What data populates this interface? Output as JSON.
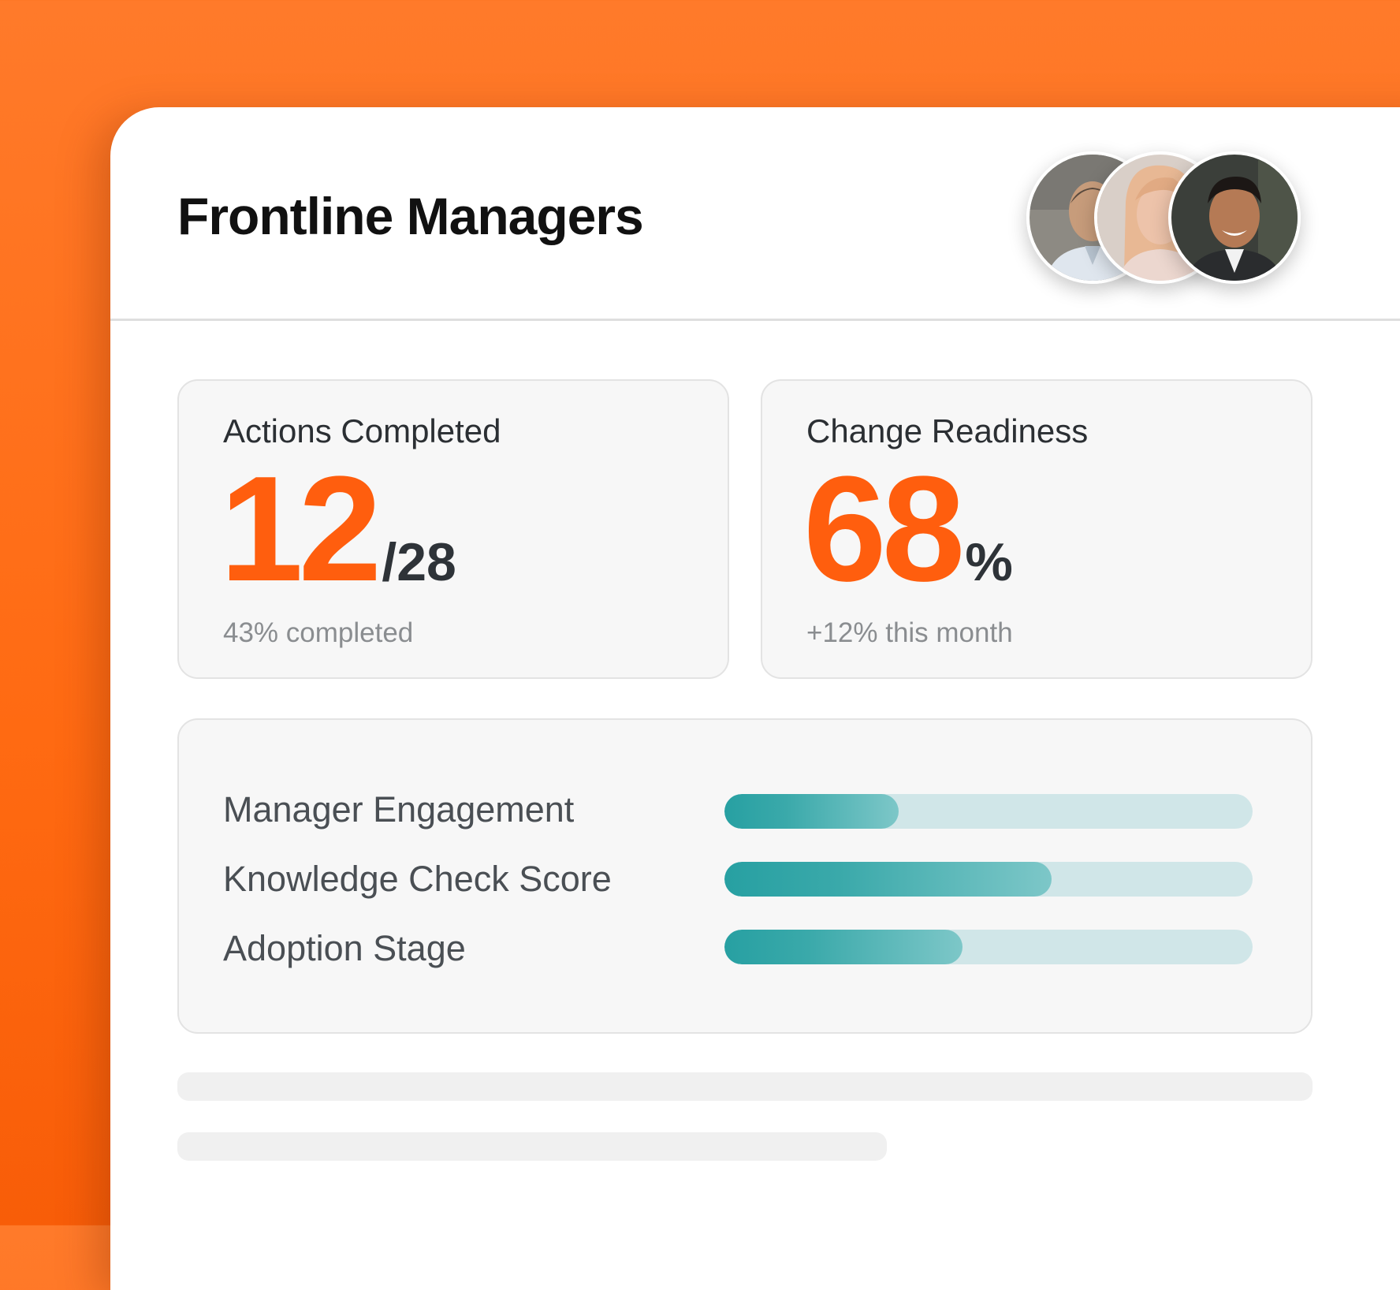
{
  "header": {
    "title": "Frontline Managers",
    "avatars": [
      {
        "name": "avatar-man-shaved-head",
        "bg": "#8d8a83",
        "skin": "#c79c7b"
      },
      {
        "name": "avatar-woman-blonde",
        "bg": "#d9cfc8",
        "skin": "#edc3aa"
      },
      {
        "name": "avatar-man-smiling",
        "bg": "#3b3f3a",
        "skin": "#b57a55"
      }
    ]
  },
  "cards": {
    "actions": {
      "label": "Actions Completed",
      "value": "12",
      "suffix": "/28",
      "sub": "43% completed"
    },
    "readiness": {
      "label": "Change Readiness",
      "value": "68",
      "suffix": "%",
      "sub": "+12% this month"
    }
  },
  "metrics": [
    {
      "label": "Manager Engagement",
      "fraction": 0.33
    },
    {
      "label": "Knowledge Check Score",
      "fraction": 0.62
    },
    {
      "label": "Adoption Stage",
      "fraction": 0.45
    }
  ],
  "colors": {
    "accent": "#ff5e0e",
    "bar_fill": "#27a0a2",
    "bar_track": "#d0e6e8",
    "background": "#ff6a12"
  }
}
